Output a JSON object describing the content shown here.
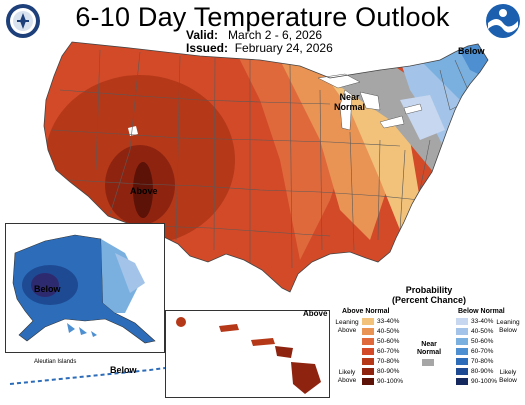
{
  "header": {
    "title": "6-10 Day Temperature Outlook",
    "valid_label": "Valid:",
    "valid_value": "March 2 - 6, 2026",
    "issued_label": "Issued:",
    "issued_value": "February 24, 2026"
  },
  "logos": {
    "left": "us-department-of-commerce-seal",
    "right": "noaa-logo"
  },
  "map_labels": {
    "above_west": "Above",
    "near_normal": "Near\nNormal",
    "below_northeast": "Below",
    "below_alaska": "Below",
    "aleutian_islands": "Aleutian Islands",
    "below_aleutian": "Below",
    "above_hawaii": "Above"
  },
  "legend": {
    "title": "Probability\n(Percent Chance)",
    "above_header": "Above Normal",
    "below_header": "Below Normal",
    "near_header": "Near\nNormal",
    "leaning_above": "Leaning\nAbove",
    "likely_above": "Likely\nAbove",
    "leaning_below": "Leaning\nBelow",
    "likely_below": "Likely\nBelow",
    "above_items": [
      {
        "label": "33-40%",
        "color": "#f2c27a"
      },
      {
        "label": "40-50%",
        "color": "#e99455"
      },
      {
        "label": "50-60%",
        "color": "#e0693c"
      },
      {
        "label": "60-70%",
        "color": "#d24a28"
      },
      {
        "label": "70-80%",
        "color": "#b53818"
      },
      {
        "label": "80-90%",
        "color": "#8e2410"
      },
      {
        "label": "90-100%",
        "color": "#5c1207"
      }
    ],
    "near_color": "#a6a6a6",
    "below_items": [
      {
        "label": "33-40%",
        "color": "#c7d7f0"
      },
      {
        "label": "40-50%",
        "color": "#a3c4e8"
      },
      {
        "label": "50-60%",
        "color": "#7ab0e0"
      },
      {
        "label": "60-70%",
        "color": "#4d8fd1"
      },
      {
        "label": "70-80%",
        "color": "#2c6cb8"
      },
      {
        "label": "80-90%",
        "color": "#1e4a93"
      },
      {
        "label": "90-100%",
        "color": "#16295e"
      }
    ]
  }
}
